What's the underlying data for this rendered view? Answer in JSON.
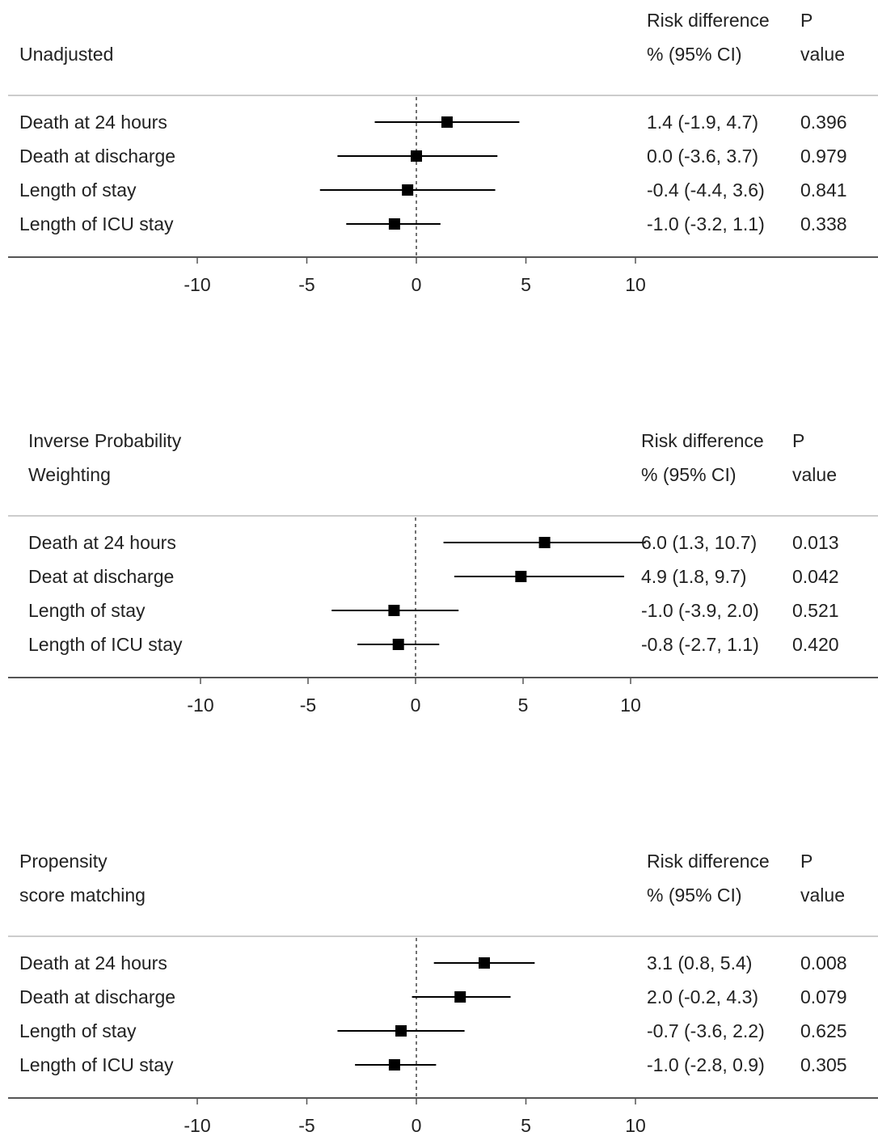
{
  "chart_data": [
    {
      "type": "forest",
      "title_lines": [
        "Unadjusted",
        ""
      ],
      "col_header": {
        "estimate": [
          "Risk difference",
          "% (95% CI)"
        ],
        "p": [
          "P",
          "value"
        ]
      },
      "xlim": [
        -10,
        10
      ],
      "xticks": [
        -10,
        -5,
        0,
        5,
        10
      ],
      "reference_line": 0,
      "rows": [
        {
          "label": "Death at 24 hours",
          "estimate": 1.4,
          "lower": -1.9,
          "upper": 4.7,
          "ci_text": "1.4 (-1.9, 4.7)",
          "p": "0.396"
        },
        {
          "label": "Death at discharge",
          "estimate": 0.0,
          "lower": -3.6,
          "upper": 3.7,
          "ci_text": "0.0 (-3.6, 3.7)",
          "p": "0.979"
        },
        {
          "label": "Length of stay",
          "estimate": -0.4,
          "lower": -4.4,
          "upper": 3.6,
          "ci_text": "-0.4 (-4.4, 3.6)",
          "p": "0.841"
        },
        {
          "label": "Length of ICU stay",
          "estimate": -1.0,
          "lower": -3.2,
          "upper": 1.1,
          "ci_text": "-1.0 (-3.2, 1.1)",
          "p": "0.338"
        }
      ]
    },
    {
      "type": "forest",
      "title_lines": [
        "Inverse Probability",
        "Weighting"
      ],
      "col_header": {
        "estimate": [
          "Risk difference",
          "% (95% CI)"
        ],
        "p": [
          "P",
          "value"
        ]
      },
      "xlim": [
        -10,
        10
      ],
      "xticks": [
        -10,
        -5,
        0,
        5,
        10
      ],
      "reference_line": 0,
      "rows": [
        {
          "label": "Death at 24 hours",
          "estimate": 6.0,
          "lower": 1.3,
          "upper": 10.7,
          "ci_text": "6.0 (1.3, 10.7)",
          "p": "0.013"
        },
        {
          "label": "Deat at discharge",
          "estimate": 4.9,
          "lower": 1.8,
          "upper": 9.7,
          "ci_text": "4.9 (1.8, 9.7)",
          "p": "0.042"
        },
        {
          "label": "Length of stay",
          "estimate": -1.0,
          "lower": -3.9,
          "upper": 2.0,
          "ci_text": "-1.0 (-3.9, 2.0)",
          "p": "0.521"
        },
        {
          "label": "Length of ICU stay",
          "estimate": -0.8,
          "lower": -2.7,
          "upper": 1.1,
          "ci_text": "-0.8 (-2.7, 1.1)",
          "p": "0.420"
        }
      ]
    },
    {
      "type": "forest",
      "title_lines": [
        "Propensity",
        "score matching"
      ],
      "col_header": {
        "estimate": [
          "Risk difference",
          "% (95% CI)"
        ],
        "p": [
          "P",
          "value"
        ]
      },
      "xlim": [
        -10,
        10
      ],
      "xticks": [
        -10,
        -5,
        0,
        5,
        10
      ],
      "reference_line": 0,
      "rows": [
        {
          "label": "Death at 24 hours",
          "estimate": 3.1,
          "lower": 0.8,
          "upper": 5.4,
          "ci_text": "3.1 (0.8, 5.4)",
          "p": "0.008"
        },
        {
          "label": "Death at discharge",
          "estimate": 2.0,
          "lower": -0.2,
          "upper": 4.3,
          "ci_text": "2.0 (-0.2, 4.3)",
          "p": "0.079"
        },
        {
          "label": "Length of stay",
          "estimate": -0.7,
          "lower": -3.6,
          "upper": 2.2,
          "ci_text": "-0.7 (-3.6, 2.2)",
          "p": "0.625"
        },
        {
          "label": "Length of ICU stay",
          "estimate": -1.0,
          "lower": -2.8,
          "upper": 0.9,
          "ci_text": "-1.0 (-2.8, 0.9)",
          "p": "0.305"
        }
      ]
    }
  ],
  "colors": {
    "marker": "#000000",
    "text": "#222222",
    "divider": "#cccccc",
    "axis": "#555555"
  }
}
